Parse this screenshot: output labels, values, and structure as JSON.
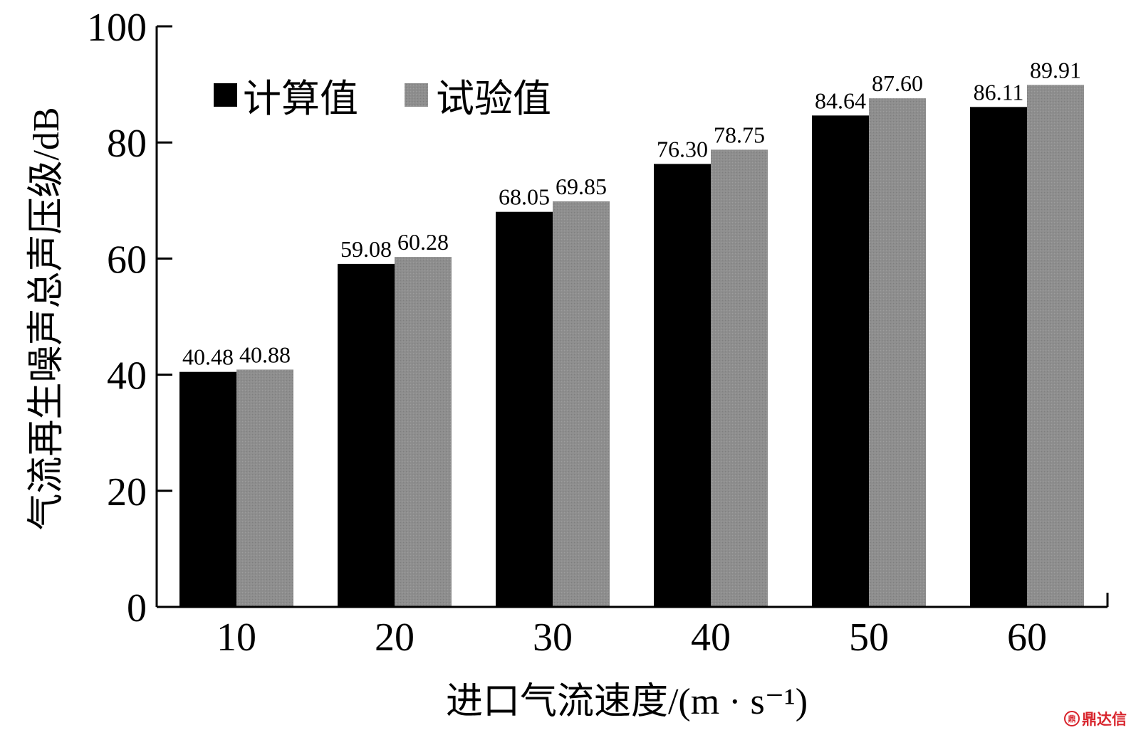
{
  "chart_data": {
    "type": "bar",
    "categories": [
      "10",
      "20",
      "30",
      "40",
      "50",
      "60"
    ],
    "series": [
      {
        "name": "计算值",
        "values": [
          40.48,
          59.08,
          68.05,
          76.3,
          84.64,
          86.11
        ],
        "labels": [
          "40.48",
          "59.08",
          "68.05",
          "76.30",
          "84.64",
          "86.11"
        ],
        "color": "#000000"
      },
      {
        "name": "试验值",
        "values": [
          40.88,
          60.28,
          69.85,
          78.75,
          87.6,
          89.91
        ],
        "labels": [
          "40.88",
          "60.28",
          "69.85",
          "78.75",
          "87.60",
          "89.91"
        ],
        "color": "#8c8c8c"
      }
    ],
    "xlabel": "进口气流速度/(m · s⁻¹)",
    "ylabel": "气流再生噪声总声压级/dB",
    "ylim": [
      0,
      100
    ],
    "yticks": [
      "0",
      "20",
      "40",
      "60",
      "80",
      "100"
    ],
    "grid": false,
    "legend_position": "top-left"
  },
  "watermark": {
    "icon": "seal-icon",
    "mark": "鼎",
    "text": "鼎达信"
  }
}
